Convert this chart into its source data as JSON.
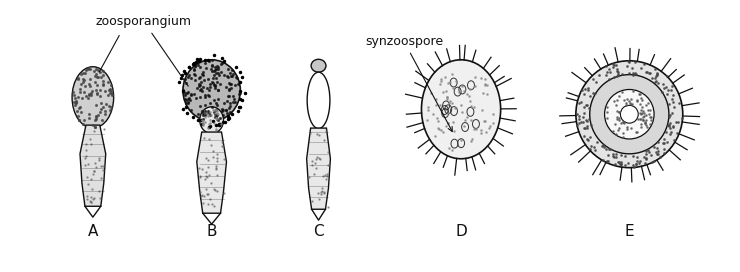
{
  "title": "",
  "background_color": "#ffffff",
  "label_A": "A",
  "label_B": "B",
  "label_C": "C",
  "label_D": "D",
  "label_E": "E",
  "annotation_zoosporangium": "zoosporangium",
  "annotation_synzoospore": "synzoospore",
  "fig_width": 7.4,
  "fig_height": 2.72,
  "dpi": 100,
  "line_color": "#111111"
}
